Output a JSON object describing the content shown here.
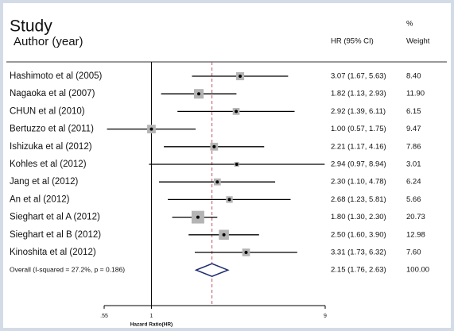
{
  "chart_data": {
    "type": "forest",
    "title": "Study",
    "subtitle": "Author (year)",
    "ci_header": "HR (95% CI)",
    "weight_header_top": "%",
    "weight_header": "Weight",
    "xlabel": "Hazard Ratio(HR)",
    "log_scale": true,
    "reference_line": 1,
    "xlim": [
      0.55,
      9
    ],
    "xticks": [
      {
        "value": 0.55,
        "label": ".55"
      },
      1,
      9
    ],
    "box_color": "#b4b4b4",
    "diamond_color": "#1a2a6e",
    "overall_line_color": "#c0506a",
    "studies": [
      {
        "name": "Hashimoto et al (2005)",
        "hr": 3.07,
        "lower": 1.67,
        "upper": 5.63,
        "ci_label": "3.07 (1.67, 5.63)",
        "weight": 8.4,
        "weight_label": "8.40"
      },
      {
        "name": "Nagaoka et al  (2007)",
        "hr": 1.82,
        "lower": 1.13,
        "upper": 2.93,
        "ci_label": "1.82 (1.13, 2.93)",
        "weight": 11.9,
        "weight_label": "11.90"
      },
      {
        "name": "CHUN et al (2010)",
        "hr": 2.92,
        "lower": 1.39,
        "upper": 6.11,
        "ci_label": "2.92 (1.39, 6.11)",
        "weight": 6.15,
        "weight_label": "6.15"
      },
      {
        "name": "Bertuzzo et al (2011)",
        "hr": 1.0,
        "lower": 0.57,
        "upper": 1.75,
        "ci_label": "1.00 (0.57, 1.75)",
        "weight": 9.47,
        "weight_label": "9.47"
      },
      {
        "name": "Ishizuka et al (2012)",
        "hr": 2.21,
        "lower": 1.17,
        "upper": 4.16,
        "ci_label": "2.21 (1.17, 4.16)",
        "weight": 7.86,
        "weight_label": "7.86"
      },
      {
        "name": "Kohles et al   (2012)",
        "hr": 2.94,
        "lower": 0.97,
        "upper": 8.94,
        "ci_label": "2.94 (0.97, 8.94)",
        "weight": 3.01,
        "weight_label": "3.01"
      },
      {
        "name": "Jang et al (2012)",
        "hr": 2.3,
        "lower": 1.1,
        "upper": 4.78,
        "ci_label": "2.30 (1.10, 4.78)",
        "weight": 6.24,
        "weight_label": "6.24"
      },
      {
        "name": "An et al (2012)",
        "hr": 2.68,
        "lower": 1.23,
        "upper": 5.81,
        "ci_label": "2.68 (1.23, 5.81)",
        "weight": 5.66,
        "weight_label": "5.66"
      },
      {
        "name": "Sieghart et al A (2012)",
        "hr": 1.8,
        "lower": 1.3,
        "upper": 2.3,
        "ci_label": "1.80 (1.30, 2.30)",
        "weight": 20.73,
        "weight_label": "20.73"
      },
      {
        "name": "Sieghart et al B (2012)",
        "hr": 2.5,
        "lower": 1.6,
        "upper": 3.9,
        "ci_label": "2.50 (1.60, 3.90)",
        "weight": 12.98,
        "weight_label": "12.98"
      },
      {
        "name": "Kinoshita et al  (2012)",
        "hr": 3.31,
        "lower": 1.73,
        "upper": 6.32,
        "ci_label": "3.31 (1.73, 6.32)",
        "weight": 7.6,
        "weight_label": "7.60"
      }
    ],
    "overall": {
      "name": "Overall  (I-squared = 27.2%, p = 0.186)",
      "hr": 2.15,
      "lower": 1.76,
      "upper": 2.63,
      "ci_label": "2.15 (1.76, 2.63)",
      "weight": 100,
      "weight_label": "100.00"
    }
  }
}
